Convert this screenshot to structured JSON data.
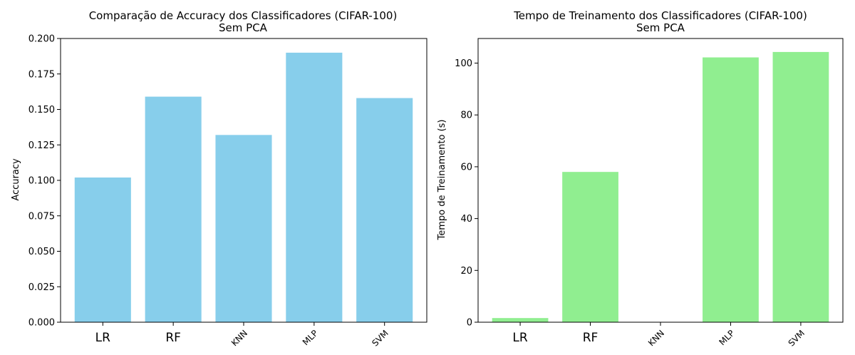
{
  "chart_data": [
    {
      "type": "bar",
      "title": "Comparação de Accuracy dos Classificadores (CIFAR-100)",
      "subtitle": "Sem PCA",
      "xlabel": "",
      "ylabel": "Accuracy",
      "categories": [
        "LR",
        "RF",
        "KNN",
        "MLP",
        "SVM"
      ],
      "values": [
        0.102,
        0.159,
        0.132,
        0.19,
        0.158
      ],
      "color": "#87CEEB",
      "ylim": [
        0,
        0.2
      ],
      "yticks": [
        0.0,
        0.025,
        0.05,
        0.075,
        0.1,
        0.125,
        0.15,
        0.175,
        0.2
      ],
      "ytick_labels": [
        "0.000",
        "0.025",
        "0.050",
        "0.075",
        "0.100",
        "0.125",
        "0.150",
        "0.175",
        "0.200"
      ],
      "grid": false
    },
    {
      "type": "bar",
      "title": "Tempo de Treinamento dos Classificadores (CIFAR-100)",
      "subtitle": "Sem PCA",
      "xlabel": "",
      "ylabel": "Tempo de Treinamento (s)",
      "categories": [
        "LR",
        "RF",
        "KNN",
        "MLP",
        "SVM"
      ],
      "values": [
        1.6,
        58.0,
        0.0,
        102.2,
        104.3
      ],
      "color": "#90EE90",
      "ylim": [
        0,
        109.5
      ],
      "yticks": [
        0,
        20,
        40,
        60,
        80,
        100
      ],
      "ytick_labels": [
        "0",
        "20",
        "40",
        "60",
        "80",
        "100"
      ],
      "grid": false
    }
  ]
}
